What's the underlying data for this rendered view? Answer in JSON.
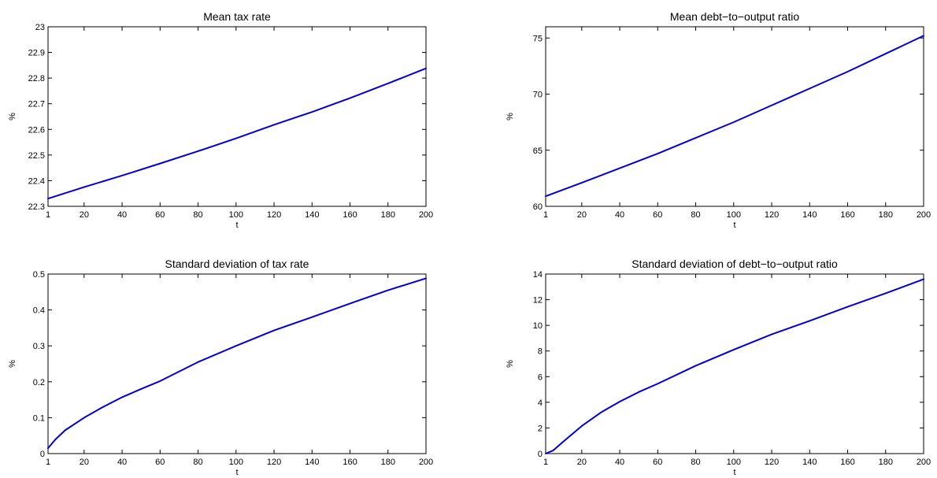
{
  "chart_data": [
    {
      "type": "line",
      "title": "Mean tax rate",
      "xlabel": "t",
      "ylabel": "%",
      "xlim": [
        1,
        200
      ],
      "ylim": [
        22.3,
        23
      ],
      "xticks": [
        1,
        20,
        40,
        60,
        80,
        100,
        120,
        140,
        160,
        180,
        200
      ],
      "yticks": [
        22.3,
        22.4,
        22.5,
        22.6,
        22.7,
        22.8,
        22.9,
        23
      ],
      "ytick_labels": [
        "22.3",
        "22.4",
        "22.5",
        "22.6",
        "22.7",
        "22.8",
        "22.9",
        "23"
      ],
      "grid": false,
      "line_color": "#0000d4",
      "series": [
        {
          "x": [
            1,
            20,
            40,
            60,
            80,
            100,
            120,
            140,
            160,
            180,
            200
          ],
          "values": [
            22.33,
            22.375,
            22.42,
            22.467,
            22.515,
            22.565,
            22.618,
            22.668,
            22.722,
            22.779,
            22.838
          ]
        }
      ]
    },
    {
      "type": "line",
      "title": "Mean debt−to−output ratio",
      "xlabel": "t",
      "ylabel": "%",
      "xlim": [
        1,
        200
      ],
      "ylim": [
        60,
        76
      ],
      "xticks": [
        1,
        20,
        40,
        60,
        80,
        100,
        120,
        140,
        160,
        180,
        200
      ],
      "yticks": [
        60,
        65,
        70,
        75
      ],
      "ytick_labels": [
        "60",
        "65",
        "70",
        "75"
      ],
      "grid": false,
      "line_color": "#0000d4",
      "series": [
        {
          "x": [
            1,
            20,
            40,
            60,
            80,
            100,
            120,
            140,
            160,
            180,
            200
          ],
          "values": [
            60.9,
            62.1,
            63.4,
            64.7,
            66.1,
            67.5,
            69.0,
            70.5,
            72.0,
            73.6,
            75.2
          ]
        }
      ]
    },
    {
      "type": "line",
      "title": "Standard deviation of  tax rate",
      "xlabel": "t",
      "ylabel": "%",
      "xlim": [
        1,
        200
      ],
      "ylim": [
        0,
        0.5
      ],
      "xticks": [
        1,
        20,
        40,
        60,
        80,
        100,
        120,
        140,
        160,
        180,
        200
      ],
      "yticks": [
        0,
        0.1,
        0.2,
        0.3,
        0.4,
        0.5
      ],
      "ytick_labels": [
        "0",
        "0.1",
        "0.2",
        "0.3",
        "0.4",
        "0.5"
      ],
      "grid": false,
      "line_color": "#0000d4",
      "series": [
        {
          "x": [
            1,
            5,
            10,
            20,
            30,
            40,
            50,
            60,
            80,
            100,
            120,
            140,
            160,
            180,
            200
          ],
          "values": [
            0.015,
            0.04,
            0.065,
            0.1,
            0.13,
            0.157,
            0.18,
            0.202,
            0.255,
            0.3,
            0.343,
            0.38,
            0.418,
            0.455,
            0.488
          ]
        }
      ]
    },
    {
      "type": "line",
      "title": "Standard deviation of  debt−to−output ratio",
      "xlabel": "t",
      "ylabel": "%",
      "xlim": [
        1,
        200
      ],
      "ylim": [
        0,
        14
      ],
      "xticks": [
        1,
        20,
        40,
        60,
        80,
        100,
        120,
        140,
        160,
        180,
        200
      ],
      "yticks": [
        0,
        2,
        4,
        6,
        8,
        10,
        12,
        14
      ],
      "ytick_labels": [
        "0",
        "2",
        "4",
        "6",
        "8",
        "10",
        "12",
        "14"
      ],
      "grid": false,
      "line_color": "#0000d4",
      "series": [
        {
          "x": [
            1,
            5,
            10,
            20,
            30,
            40,
            50,
            60,
            80,
            100,
            120,
            140,
            160,
            180,
            200
          ],
          "values": [
            0.0,
            0.25,
            0.9,
            2.15,
            3.2,
            4.05,
            4.8,
            5.45,
            6.85,
            8.1,
            9.3,
            10.35,
            11.45,
            12.5,
            13.6
          ]
        }
      ]
    }
  ]
}
